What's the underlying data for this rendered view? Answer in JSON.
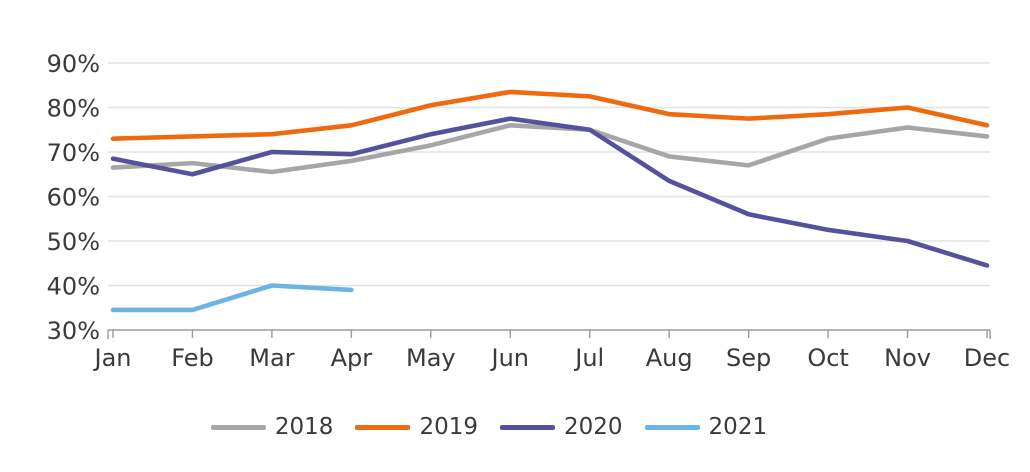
{
  "chart_data": {
    "type": "line",
    "title": "",
    "xlabel": "",
    "ylabel": "",
    "x": [
      "Jan",
      "Feb",
      "Mar",
      "Apr",
      "May",
      "Jun",
      "Jul",
      "Aug",
      "Sep",
      "Oct",
      "Nov",
      "Dec"
    ],
    "ylim": [
      30,
      90
    ],
    "yticks": [
      30,
      40,
      50,
      60,
      70,
      80,
      90
    ],
    "ytick_suffix": "%",
    "grid": "horizontal",
    "legend_position": "bottom",
    "series": [
      {
        "name": "2018",
        "color": "#a6a6a6",
        "values": [
          66.5,
          67.5,
          65.5,
          68,
          71.5,
          76,
          75,
          69,
          67,
          73,
          75.5,
          73.5
        ]
      },
      {
        "name": "2019",
        "color": "#ef6a0f",
        "values": [
          73,
          73.5,
          74,
          76,
          80.5,
          83.5,
          82.5,
          78.5,
          77.5,
          78.5,
          80,
          76
        ]
      },
      {
        "name": "2020",
        "color": "#55519b",
        "values": [
          68.5,
          65,
          70,
          69.5,
          74,
          77.5,
          75,
          63.5,
          56,
          52.5,
          50,
          44.5
        ]
      },
      {
        "name": "2021",
        "color": "#6cb4e4",
        "values": [
          34.5,
          34.5,
          40,
          39
        ]
      }
    ]
  },
  "colors": {
    "background": "#ffffff",
    "grid_line": "#e2e2e2",
    "axis_line": "#9b9b9b",
    "text": "#3a3a3a"
  }
}
